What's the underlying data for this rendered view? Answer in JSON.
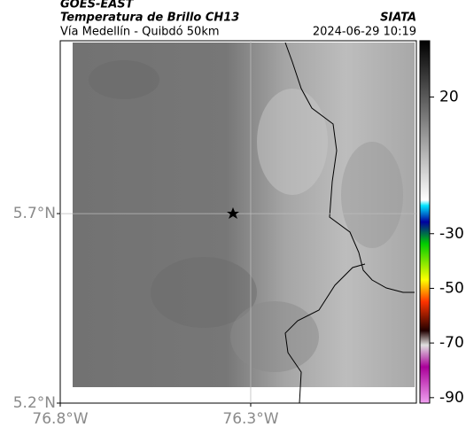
{
  "header": {
    "source": "GOES-EAST",
    "title": "Temperatura de Brillo CH13",
    "subtitle": "Vía Medellín - Quibdó 50km",
    "brand": "SIATA",
    "datetime": "2024-06-29 10:19"
  },
  "map": {
    "xlim": [
      -76.8,
      -75.865
    ],
    "ylim": [
      5.2,
      6.156
    ],
    "xticks": [
      {
        "value": -76.8,
        "label": "76.8°W"
      },
      {
        "value": -76.3,
        "label": "76.3°W"
      }
    ],
    "yticks": [
      {
        "value": 5.2,
        "label": "5.2°N"
      },
      {
        "value": 5.7,
        "label": "5.7°N"
      }
    ],
    "grid": true
  },
  "colorbar": {
    "lim": [
      -92,
      40.6
    ],
    "ticks": [
      20,
      -30,
      -50,
      -70,
      -90
    ]
  }
}
